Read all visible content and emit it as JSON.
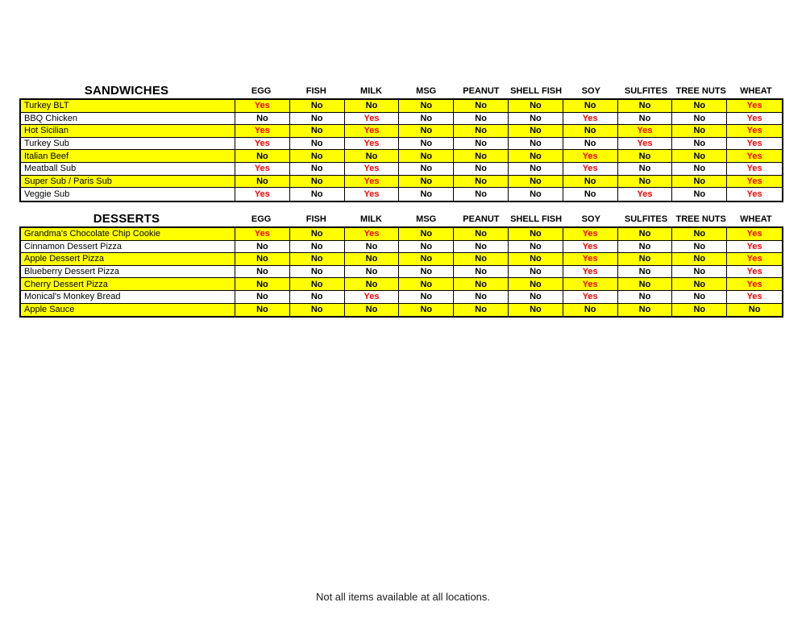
{
  "columns": [
    "EGG",
    "FISH",
    "MILK",
    "MSG",
    "PEANUT",
    "SHELL FISH",
    "SOY",
    "SULFITES",
    "TREE NUTS",
    "WHEAT"
  ],
  "sections": [
    {
      "title": "SANDWICHES",
      "rows": [
        {
          "name": "Turkey BLT",
          "values": [
            "Yes",
            "No",
            "No",
            "No",
            "No",
            "No",
            "No",
            "No",
            "No",
            "Yes"
          ]
        },
        {
          "name": "BBQ Chicken",
          "values": [
            "No",
            "No",
            "Yes",
            "No",
            "No",
            "No",
            "Yes",
            "No",
            "No",
            "Yes"
          ]
        },
        {
          "name": "Hot Sicilian",
          "values": [
            "Yes",
            "No",
            "Yes",
            "No",
            "No",
            "No",
            "No",
            "Yes",
            "No",
            "Yes"
          ]
        },
        {
          "name": "Turkey Sub",
          "values": [
            "Yes",
            "No",
            "Yes",
            "No",
            "No",
            "No",
            "No",
            "Yes",
            "No",
            "Yes"
          ]
        },
        {
          "name": "Italian Beef",
          "values": [
            "No",
            "No",
            "No",
            "No",
            "No",
            "No",
            "Yes",
            "No",
            "No",
            "Yes"
          ]
        },
        {
          "name": "Meatball Sub",
          "values": [
            "Yes",
            "No",
            "Yes",
            "No",
            "No",
            "No",
            "Yes",
            "No",
            "No",
            "Yes"
          ]
        },
        {
          "name": "Super Sub / Paris Sub",
          "values": [
            "No",
            "No",
            "Yes",
            "No",
            "No",
            "No",
            "No",
            "No",
            "No",
            "Yes"
          ]
        },
        {
          "name": "Veggie Sub",
          "values": [
            "Yes",
            "No",
            "Yes",
            "No",
            "No",
            "No",
            "No",
            "Yes",
            "No",
            "Yes"
          ]
        }
      ]
    },
    {
      "title": "DESSERTS",
      "rows": [
        {
          "name": "Grandma's Chocolate Chip Cookie",
          "values": [
            "Yes",
            "No",
            "Yes",
            "No",
            "No",
            "No",
            "Yes",
            "No",
            "No",
            "Yes"
          ]
        },
        {
          "name": "Cinnamon Dessert Pizza",
          "values": [
            "No",
            "No",
            "No",
            "No",
            "No",
            "No",
            "Yes",
            "No",
            "No",
            "Yes"
          ]
        },
        {
          "name": "Apple Dessert Pizza",
          "values": [
            "No",
            "No",
            "No",
            "No",
            "No",
            "No",
            "Yes",
            "No",
            "No",
            "Yes"
          ]
        },
        {
          "name": "Blueberry Dessert Pizza",
          "values": [
            "No",
            "No",
            "No",
            "No",
            "No",
            "No",
            "Yes",
            "No",
            "No",
            "Yes"
          ]
        },
        {
          "name": "Cherry Dessert Pizza",
          "values": [
            "No",
            "No",
            "No",
            "No",
            "No",
            "No",
            "Yes",
            "No",
            "No",
            "Yes"
          ]
        },
        {
          "name": "Monical's Monkey Bread",
          "values": [
            "No",
            "No",
            "Yes",
            "No",
            "No",
            "No",
            "Yes",
            "No",
            "No",
            "Yes"
          ]
        },
        {
          "name": "Apple Sauce",
          "values": [
            "No",
            "No",
            "No",
            "No",
            "No",
            "No",
            "No",
            "No",
            "No",
            "No"
          ]
        }
      ]
    }
  ],
  "footer": {
    "note": "Not all items available at all locations."
  },
  "colors": {
    "highlight_row": "#ffff00",
    "yes_text": "#ff0000",
    "no_text": "#000000",
    "border": "#000000"
  }
}
